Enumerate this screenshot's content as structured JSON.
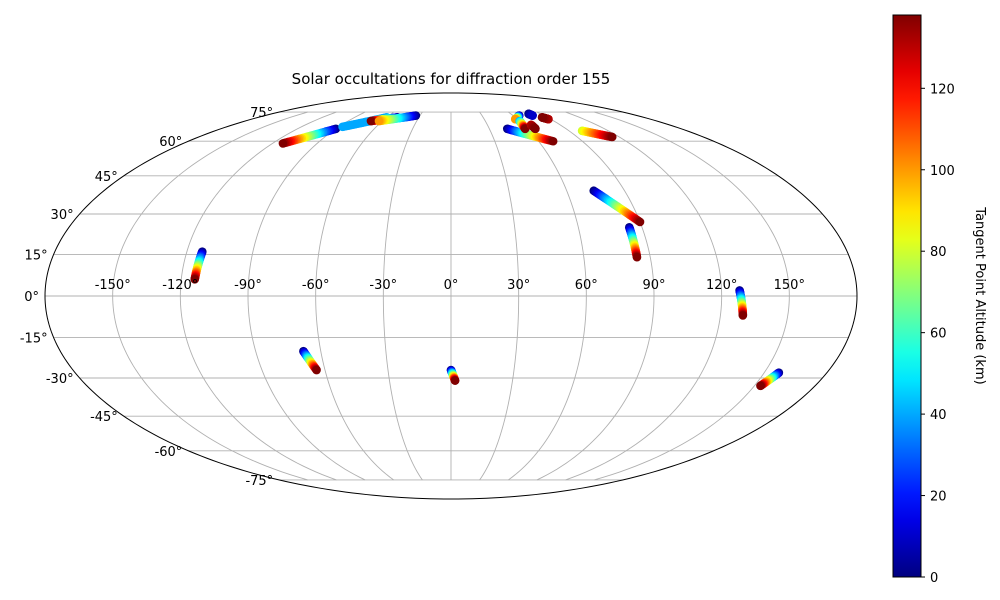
{
  "chart_data": {
    "type": "scatter",
    "projection": "mollweide",
    "title": "Solar occultations for diffraction order 155",
    "xlabel": "",
    "ylabel": "",
    "xlim": [
      -180,
      180
    ],
    "ylim": [
      -90,
      90
    ],
    "grid": true,
    "lon_ticks": [
      -150,
      -120,
      -90,
      -60,
      -30,
      0,
      30,
      60,
      90,
      120,
      150
    ],
    "lon_tick_labels": [
      "-150°",
      "-120°",
      "-90°",
      "-60°",
      "-30°",
      "0°",
      "30°",
      "60°",
      "90°",
      "120°",
      "150°"
    ],
    "lat_ticks": [
      -75,
      -60,
      -45,
      -30,
      -15,
      0,
      15,
      30,
      45,
      60,
      75
    ],
    "lat_tick_labels": [
      "-75°",
      "-60°",
      "-45°",
      "-30°",
      "-15°",
      "0°",
      "15°",
      "30°",
      "45°",
      "60°",
      "75°"
    ],
    "colorbar": {
      "label": "Tangent Point Altitude (km)",
      "colormap": "jet",
      "range": [
        0,
        138
      ],
      "ticks": [
        0,
        20,
        40,
        60,
        80,
        100,
        120
      ],
      "tick_labels": [
        "0",
        "20",
        "40",
        "60",
        "80",
        "100",
        "120"
      ]
    },
    "series": [
      {
        "lon_start": -113,
        "lat_start": 16,
        "lon_end": -114,
        "lat_end": 6,
        "alt_start": 0,
        "alt_end": 138
      },
      {
        "lon_start": -68,
        "lat_start": -20,
        "lon_end": -64,
        "lat_end": -27,
        "alt_start": 0,
        "alt_end": 138
      },
      {
        "lon_start": 0,
        "lat_start": -27,
        "lon_end": 2,
        "lat_end": -31,
        "alt_start": 0,
        "alt_end": 138
      },
      {
        "lon_start": 157,
        "lat_start": -28,
        "lon_end": 153,
        "lat_end": -33,
        "alt_start": 0,
        "alt_end": 138
      },
      {
        "lon_start": 128,
        "lat_start": 2,
        "lon_end": 130,
        "lat_end": -7,
        "alt_start": 0,
        "alt_end": 138
      },
      {
        "lon_start": 84,
        "lat_start": 25,
        "lon_end": 84,
        "lat_end": 14,
        "alt_start": 0,
        "alt_end": 138
      },
      {
        "lon_start": 74,
        "lat_start": 39,
        "lon_end": 90,
        "lat_end": 27,
        "alt_start": 0,
        "alt_end": 138
      },
      {
        "lon_start": 44,
        "lat_start": 66,
        "lon_end": 70,
        "lat_end": 60,
        "alt_start": 0,
        "alt_end": 138
      },
      {
        "lon_start": -90,
        "lat_start": 66,
        "lon_end": -113,
        "lat_end": 59,
        "alt_start": 0,
        "alt_end": 138
      },
      {
        "lon_start": -60,
        "lat_start": 72,
        "lon_end": -87,
        "lat_end": 67,
        "alt_start": 40,
        "alt_end": 40
      },
      {
        "lon_start": -50,
        "lat_start": 72,
        "lon_end": -70,
        "lat_end": 70,
        "alt_start": 0,
        "alt_end": 138
      },
      {
        "lon_start": -34,
        "lat_start": 73,
        "lon_end": -63,
        "lat_end": 70,
        "alt_start": 0,
        "alt_end": 100
      },
      {
        "lon_start": 66,
        "lat_start": 73,
        "lon_end": 58,
        "lat_end": 71,
        "alt_start": 0,
        "alt_end": 100
      },
      {
        "lon_start": 60,
        "lat_start": 70,
        "lon_end": 58,
        "lat_end": 66,
        "alt_start": 40,
        "alt_end": 138
      },
      {
        "lon_start": 78,
        "lat_start": 74,
        "lon_end": 79,
        "lat_end": 73,
        "alt_start": 0,
        "alt_end": 10
      },
      {
        "lon_start": 88,
        "lat_start": 71,
        "lon_end": 85,
        "lat_end": 72,
        "alt_start": 130,
        "alt_end": 138
      },
      {
        "lon_start": 100,
        "lat_start": 65,
        "lon_end": 115,
        "lat_end": 62,
        "alt_start": 80,
        "alt_end": 138
      },
      {
        "lon_start": 66,
        "lat_start": 68,
        "lon_end": 66,
        "lat_end": 66,
        "alt_start": 130,
        "alt_end": 138
      }
    ]
  }
}
